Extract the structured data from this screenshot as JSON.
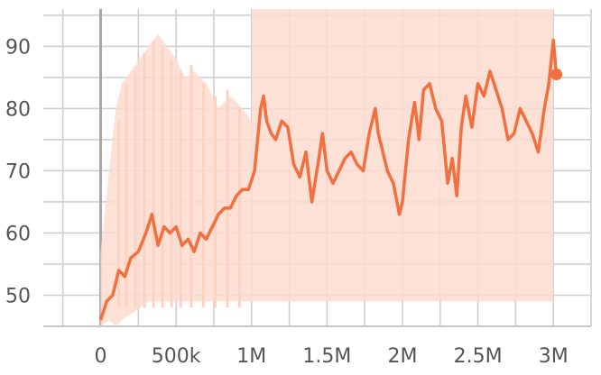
{
  "chart_data": {
    "type": "line",
    "title": "",
    "xlabel": "",
    "ylabel": "",
    "xlim": [
      -380000,
      3250000
    ],
    "ylim": [
      45,
      96
    ],
    "x_ticks": [
      {
        "value": 0,
        "label": "0"
      },
      {
        "value": 500000,
        "label": "500k"
      },
      {
        "value": 1000000,
        "label": "1M"
      },
      {
        "value": 1500000,
        "label": "1.5M"
      },
      {
        "value": 2000000,
        "label": "2M"
      },
      {
        "value": 2500000,
        "label": "2.5M"
      },
      {
        "value": 3000000,
        "label": "3M"
      }
    ],
    "y_ticks": [
      {
        "value": 50,
        "label": "50"
      },
      {
        "value": 60,
        "label": "60"
      },
      {
        "value": 70,
        "label": "70"
      },
      {
        "value": 80,
        "label": "80"
      },
      {
        "value": 90,
        "label": "90"
      }
    ],
    "grid": true,
    "colors": {
      "smoothed": "#f26f3f",
      "raw_band": "#fddccf",
      "grid": "#cfcfcf",
      "zero_axis": "#a7a7a7"
    },
    "series": [
      {
        "role": "smoothed",
        "x": [
          0,
          40000,
          80000,
          120000,
          160000,
          200000,
          250000,
          300000,
          340000,
          380000,
          420000,
          460000,
          500000,
          540000,
          580000,
          620000,
          660000,
          700000,
          740000,
          780000,
          820000,
          860000,
          900000,
          940000,
          980000,
          1020000,
          1060000,
          1080000,
          1100000,
          1130000,
          1160000,
          1200000,
          1240000,
          1280000,
          1320000,
          1360000,
          1400000,
          1440000,
          1470000,
          1500000,
          1540000,
          1580000,
          1620000,
          1660000,
          1700000,
          1740000,
          1780000,
          1820000,
          1840000,
          1860000,
          1900000,
          1940000,
          1980000,
          2000000,
          2040000,
          2080000,
          2110000,
          2140000,
          2180000,
          2220000,
          2260000,
          2300000,
          2330000,
          2360000,
          2390000,
          2420000,
          2460000,
          2500000,
          2540000,
          2580000,
          2620000,
          2660000,
          2700000,
          2740000,
          2780000,
          2820000,
          2860000,
          2900000,
          2940000,
          2970000,
          3000000,
          3020000
        ],
        "y": [
          46,
          49,
          50,
          54,
          53,
          56,
          57,
          60,
          63,
          58,
          61,
          60,
          61,
          58,
          59,
          57,
          60,
          59,
          61,
          63,
          64,
          64,
          66,
          67,
          67,
          70,
          80,
          82,
          78,
          76,
          75,
          78,
          77,
          71,
          69,
          73,
          65,
          71,
          76,
          70,
          68,
          70,
          72,
          73,
          71,
          70,
          76,
          80,
          76,
          74,
          70,
          68,
          63,
          65,
          75,
          81,
          75,
          83,
          84,
          80,
          78,
          68,
          72,
          66,
          77,
          82,
          77,
          84,
          82,
          86,
          83,
          80,
          75,
          76,
          80,
          78,
          76,
          73,
          80,
          84,
          91,
          85.5
        ]
      },
      {
        "role": "raw",
        "band_x": [
          0,
          60000,
          100000,
          140000,
          200000,
          260000,
          320000,
          380000,
          440000,
          500000,
          560000,
          620000,
          700000,
          780000,
          860000,
          940000,
          1000000,
          1001000,
          3000000
        ],
        "band_upper": [
          57,
          71,
          80,
          84,
          86,
          88,
          90,
          92,
          90,
          88,
          85,
          86,
          84,
          80,
          82,
          80,
          78,
          96,
          96
        ],
        "band_lower": [
          45,
          46,
          45,
          46,
          47,
          48,
          49,
          49,
          49,
          49,
          49,
          49,
          49,
          49,
          49,
          49,
          49,
          49,
          49
        ]
      }
    ],
    "end_marker": {
      "x": 3020000,
      "y": 85.5
    }
  }
}
